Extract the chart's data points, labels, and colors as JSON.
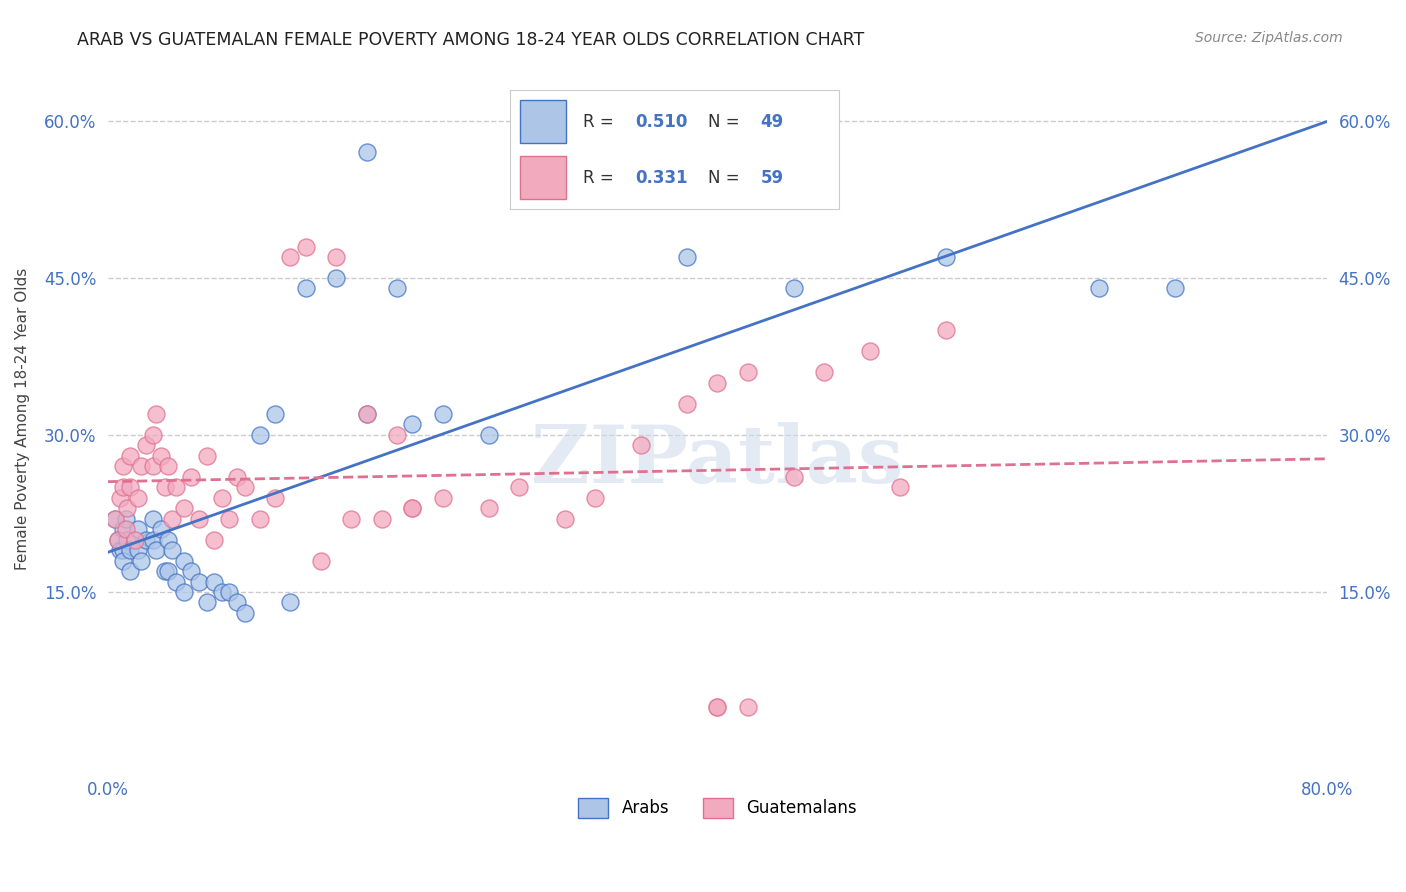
{
  "title": "ARAB VS GUATEMALAN FEMALE POVERTY AMONG 18-24 YEAR OLDS CORRELATION CHART",
  "source": "Source: ZipAtlas.com",
  "ylabel": "Female Poverty Among 18-24 Year Olds",
  "xlim": [
    0.0,
    0.8
  ],
  "ylim": [
    -0.02,
    0.65
  ],
  "xtick_positions": [
    0.0,
    0.1,
    0.2,
    0.3,
    0.4,
    0.5,
    0.6,
    0.7,
    0.8
  ],
  "xticklabels": [
    "0.0%",
    "",
    "",
    "",
    "",
    "",
    "",
    "",
    "80.0%"
  ],
  "ytick_positions": [
    0.15,
    0.3,
    0.45,
    0.6
  ],
  "ytick_labels": [
    "15.0%",
    "30.0%",
    "45.0%",
    "60.0%"
  ],
  "arab_R": "0.510",
  "arab_N": "49",
  "guatemalan_R": "0.331",
  "guatemalan_N": "59",
  "arab_color": "#adc6e8",
  "guatemalan_color": "#f2aabf",
  "arab_line_color": "#4472c4",
  "guatemalan_line_color": "#e07090",
  "watermark": "ZIPatlas",
  "arab_x": [
    0.005,
    0.007,
    0.008,
    0.01,
    0.01,
    0.01,
    0.012,
    0.013,
    0.015,
    0.015,
    0.02,
    0.02,
    0.022,
    0.025,
    0.03,
    0.03,
    0.032,
    0.035,
    0.038,
    0.04,
    0.04,
    0.042,
    0.045,
    0.05,
    0.05,
    0.055,
    0.06,
    0.065,
    0.07,
    0.075,
    0.08,
    0.085,
    0.09,
    0.1,
    0.11,
    0.12,
    0.13,
    0.15,
    0.17,
    0.19,
    0.2,
    0.22,
    0.25,
    0.38,
    0.45,
    0.55,
    0.65,
    0.7,
    0.17
  ],
  "arab_y": [
    0.22,
    0.2,
    0.19,
    0.21,
    0.19,
    0.18,
    0.22,
    0.2,
    0.19,
    0.17,
    0.21,
    0.19,
    0.18,
    0.2,
    0.22,
    0.2,
    0.19,
    0.21,
    0.17,
    0.2,
    0.17,
    0.19,
    0.16,
    0.18,
    0.15,
    0.17,
    0.16,
    0.14,
    0.16,
    0.15,
    0.15,
    0.14,
    0.13,
    0.3,
    0.32,
    0.14,
    0.44,
    0.45,
    0.32,
    0.44,
    0.31,
    0.32,
    0.3,
    0.47,
    0.44,
    0.47,
    0.44,
    0.44,
    0.57
  ],
  "guat_x": [
    0.005,
    0.007,
    0.008,
    0.01,
    0.01,
    0.012,
    0.013,
    0.015,
    0.015,
    0.018,
    0.02,
    0.022,
    0.025,
    0.03,
    0.03,
    0.032,
    0.035,
    0.038,
    0.04,
    0.042,
    0.045,
    0.05,
    0.055,
    0.06,
    0.065,
    0.07,
    0.075,
    0.08,
    0.085,
    0.09,
    0.1,
    0.11,
    0.12,
    0.13,
    0.15,
    0.17,
    0.19,
    0.2,
    0.22,
    0.25,
    0.27,
    0.3,
    0.32,
    0.35,
    0.38,
    0.4,
    0.42,
    0.45,
    0.47,
    0.5,
    0.52,
    0.55,
    0.14,
    0.16,
    0.18,
    0.2,
    0.4,
    0.4,
    0.42
  ],
  "guat_y": [
    0.22,
    0.2,
    0.24,
    0.25,
    0.27,
    0.21,
    0.23,
    0.25,
    0.28,
    0.2,
    0.24,
    0.27,
    0.29,
    0.27,
    0.3,
    0.32,
    0.28,
    0.25,
    0.27,
    0.22,
    0.25,
    0.23,
    0.26,
    0.22,
    0.28,
    0.2,
    0.24,
    0.22,
    0.26,
    0.25,
    0.22,
    0.24,
    0.47,
    0.48,
    0.47,
    0.32,
    0.3,
    0.23,
    0.24,
    0.23,
    0.25,
    0.22,
    0.24,
    0.29,
    0.33,
    0.35,
    0.36,
    0.26,
    0.36,
    0.38,
    0.25,
    0.4,
    0.18,
    0.22,
    0.22,
    0.23,
    0.04,
    0.04,
    0.04
  ],
  "background_color": "#ffffff",
  "grid_color": "#cccccc",
  "legend_R_color": "#4472c4",
  "legend_text_color": "#333333"
}
